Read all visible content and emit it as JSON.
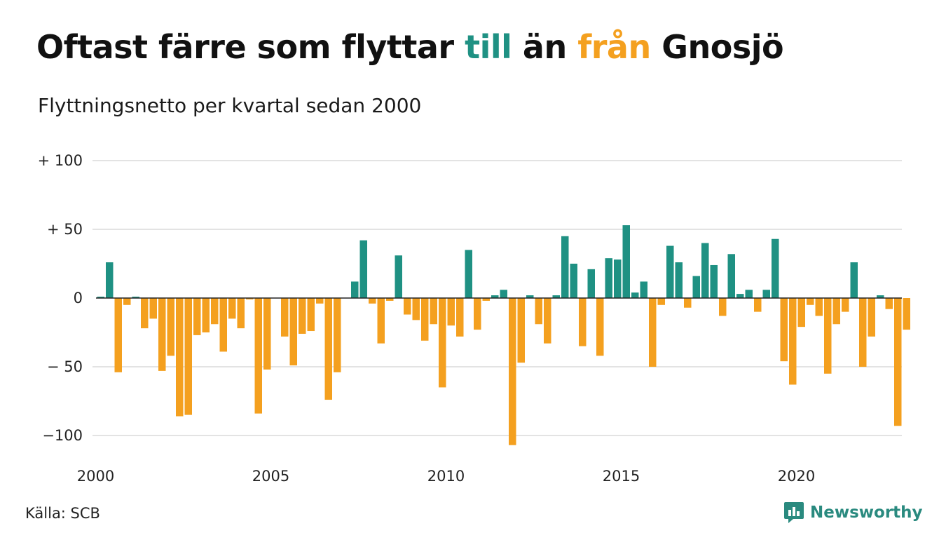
{
  "title": {
    "part1": "Oftast färre som flyttar ",
    "part2": "till",
    "part3": " än ",
    "part4": "från",
    "part5": " Gnosjö"
  },
  "subtitle": "Flyttningsnetto per kvartal sedan 2000",
  "source": "Källa: SCB",
  "brand": {
    "name": "Newsworthy",
    "icon": "newsworthy-logo-icon"
  },
  "colors": {
    "positive": "#1f9183",
    "negative": "#f4a01f",
    "grid": "#e3e3e3",
    "zero": "#222222"
  },
  "chart_data": {
    "type": "bar",
    "xlabel": "",
    "ylabel": "",
    "ylim": [
      -115,
      105
    ],
    "yticks": [
      {
        "value": 100,
        "label": "+ 100"
      },
      {
        "value": 50,
        "label": "+  50"
      },
      {
        "value": 0,
        "label": "0"
      },
      {
        "value": -50,
        "label": "− 50"
      },
      {
        "value": -100,
        "label": "−100"
      }
    ],
    "xticks": [
      {
        "quarter_index": 0,
        "label": "2000"
      },
      {
        "quarter_index": 20,
        "label": "2005"
      },
      {
        "quarter_index": 40,
        "label": "2010"
      },
      {
        "quarter_index": 60,
        "label": "2015"
      },
      {
        "quarter_index": 80,
        "label": "2020"
      }
    ],
    "first_quarter": "2000 Q1",
    "values": [
      1,
      26,
      -54,
      -5,
      1,
      -22,
      -15,
      -53,
      -42,
      -86,
      -85,
      -27,
      -25,
      -19,
      -39,
      -15,
      -22,
      -1,
      -84,
      -52,
      0,
      -28,
      -49,
      -26,
      -24,
      -4,
      -74,
      -54,
      0,
      12,
      42,
      -4,
      -33,
      -2,
      31,
      -12,
      -16,
      -31,
      -19,
      -65,
      -20,
      -28,
      35,
      -23,
      -2,
      2,
      6,
      -107,
      -47,
      2,
      -19,
      -33,
      2,
      45,
      25,
      -35,
      21,
      -42,
      29,
      28,
      53,
      4,
      12,
      -50,
      -5,
      38,
      26,
      -7,
      16,
      40,
      24,
      -13,
      32,
      3,
      6,
      -10,
      6,
      43,
      -46,
      -63,
      -21,
      -5,
      -13,
      -55,
      -19,
      -10,
      26,
      -50,
      -28,
      2,
      -8,
      -93,
      -23
    ]
  }
}
